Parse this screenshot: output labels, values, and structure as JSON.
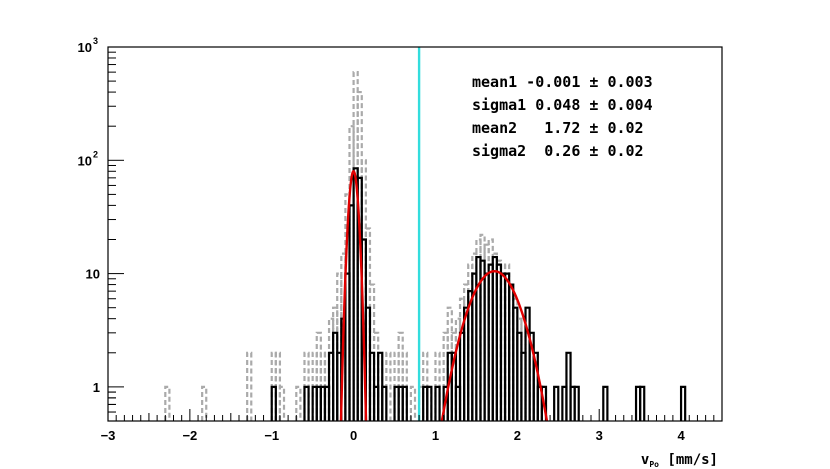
{
  "chart_data": {
    "type": "histogram",
    "xlabel_main": "v",
    "xlabel_sub": "Po",
    "xlabel_unit": "[mm/s]",
    "ylabel": "",
    "xlim": [
      -3.0,
      4.5
    ],
    "ylim": [
      0.5,
      1000
    ],
    "y_scale": "log",
    "grid": false,
    "x_ticks": [
      {
        "value": -3,
        "label": "−3"
      },
      {
        "value": -2,
        "label": "−2"
      },
      {
        "value": -1,
        "label": "−1"
      },
      {
        "value": 0,
        "label": "0"
      },
      {
        "value": 1,
        "label": "1"
      },
      {
        "value": 2,
        "label": "2"
      },
      {
        "value": 3,
        "label": "3"
      },
      {
        "value": 4,
        "label": "4"
      }
    ],
    "y_ticks": [
      {
        "value": 1,
        "label": "1"
      },
      {
        "value": 10,
        "label": "10"
      },
      {
        "value": 100,
        "label": "10",
        "exp": "2"
      },
      {
        "value": 1000,
        "label": "10",
        "exp": "3"
      }
    ],
    "bin_width": 0.05,
    "series": [
      {
        "style": "dashed",
        "color": "#aaaaaa",
        "bins": [
          [
            -2.3,
            1
          ],
          [
            -1.85,
            1
          ],
          [
            -1.3,
            2
          ],
          [
            -1.0,
            2
          ],
          [
            -0.95,
            2
          ],
          [
            -0.9,
            1
          ],
          [
            -0.7,
            1
          ],
          [
            -0.6,
            2
          ],
          [
            -0.5,
            2
          ],
          [
            -0.45,
            3
          ],
          [
            -0.4,
            2
          ],
          [
            -0.35,
            2
          ],
          [
            -0.3,
            4
          ],
          [
            -0.25,
            5
          ],
          [
            -0.2,
            10
          ],
          [
            -0.15,
            15
          ],
          [
            -0.1,
            50
          ],
          [
            -0.05,
            200
          ],
          [
            0.0,
            600
          ],
          [
            0.05,
            400
          ],
          [
            0.1,
            100
          ],
          [
            0.15,
            25
          ],
          [
            0.2,
            8
          ],
          [
            0.25,
            3
          ],
          [
            0.3,
            2
          ],
          [
            0.35,
            1
          ],
          [
            0.4,
            2
          ],
          [
            0.5,
            2
          ],
          [
            0.55,
            3
          ],
          [
            0.6,
            2
          ],
          [
            0.7,
            1
          ],
          [
            0.8,
            1
          ],
          [
            0.85,
            2
          ],
          [
            0.9,
            1
          ],
          [
            1.0,
            2
          ],
          [
            1.1,
            3
          ],
          [
            1.15,
            5
          ],
          [
            1.2,
            3
          ],
          [
            1.25,
            4
          ],
          [
            1.3,
            6
          ],
          [
            1.35,
            8
          ],
          [
            1.4,
            12
          ],
          [
            1.45,
            15
          ],
          [
            1.5,
            20
          ],
          [
            1.55,
            22
          ],
          [
            1.6,
            18
          ],
          [
            1.65,
            20
          ],
          [
            1.7,
            15
          ],
          [
            1.75,
            13
          ],
          [
            1.8,
            12
          ],
          [
            1.85,
            12
          ],
          [
            1.9,
            8
          ],
          [
            1.95,
            6
          ],
          [
            2.0,
            4
          ],
          [
            2.05,
            4
          ],
          [
            2.1,
            3
          ],
          [
            2.15,
            2
          ],
          [
            2.2,
            2
          ],
          [
            2.3,
            1
          ]
        ]
      },
      {
        "style": "solid",
        "color": "#000000",
        "bins": [
          [
            -1.0,
            1
          ],
          [
            -0.6,
            1
          ],
          [
            -0.5,
            1
          ],
          [
            -0.45,
            1
          ],
          [
            -0.4,
            1
          ],
          [
            -0.35,
            1
          ],
          [
            -0.3,
            2
          ],
          [
            -0.25,
            3
          ],
          [
            -0.2,
            2
          ],
          [
            -0.15,
            4
          ],
          [
            -0.1,
            10
          ],
          [
            -0.05,
            40
          ],
          [
            0.0,
            85
          ],
          [
            0.05,
            70
          ],
          [
            0.1,
            20
          ],
          [
            0.15,
            5
          ],
          [
            0.2,
            2
          ],
          [
            0.25,
            1
          ],
          [
            0.3,
            2
          ],
          [
            0.35,
            1
          ],
          [
            0.5,
            1
          ],
          [
            0.55,
            1
          ],
          [
            0.6,
            1
          ],
          [
            0.85,
            1
          ],
          [
            0.9,
            1
          ],
          [
            1.0,
            1
          ],
          [
            1.1,
            1
          ],
          [
            1.15,
            2
          ],
          [
            1.2,
            2
          ],
          [
            1.25,
            1
          ],
          [
            1.3,
            3
          ],
          [
            1.35,
            5
          ],
          [
            1.4,
            7
          ],
          [
            1.45,
            10
          ],
          [
            1.5,
            14
          ],
          [
            1.55,
            13
          ],
          [
            1.6,
            10
          ],
          [
            1.65,
            12
          ],
          [
            1.7,
            14
          ],
          [
            1.75,
            12
          ],
          [
            1.8,
            10
          ],
          [
            1.85,
            10
          ],
          [
            1.9,
            8
          ],
          [
            1.95,
            5
          ],
          [
            2.0,
            3
          ],
          [
            2.05,
            2
          ],
          [
            2.1,
            5
          ],
          [
            2.15,
            3
          ],
          [
            2.2,
            2
          ],
          [
            2.25,
            1
          ],
          [
            2.3,
            1
          ],
          [
            2.45,
            1
          ],
          [
            2.55,
            1
          ],
          [
            2.6,
            2
          ],
          [
            2.65,
            1
          ],
          [
            2.7,
            1
          ],
          [
            3.05,
            1
          ],
          [
            3.45,
            1
          ],
          [
            3.5,
            1
          ],
          [
            4.0,
            1
          ]
        ]
      }
    ],
    "fits": [
      {
        "color": "#e00000",
        "mean": -0.001,
        "sigma": 0.048,
        "amplitude": 80
      },
      {
        "color": "#e00000",
        "mean": 1.72,
        "sigma": 0.26,
        "amplitude": 10.5
      }
    ],
    "vline": {
      "x": 0.8,
      "color": "#33dddd"
    },
    "stats_box": [
      "mean1 -0.001 ± 0.003",
      "sigma1 0.048 ± 0.004",
      "mean2   1.72 ± 0.02",
      "sigma2  0.26 ± 0.02"
    ]
  }
}
